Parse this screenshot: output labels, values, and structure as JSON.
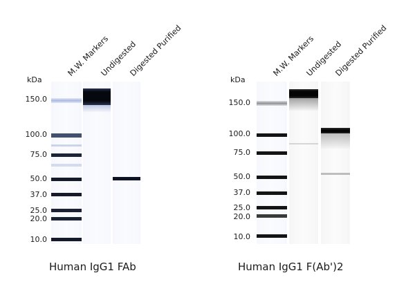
{
  "axis_unit": "kDa",
  "lane_labels": [
    "M.W. Markers",
    "Undigested",
    "Digested Purified"
  ],
  "mw_values": [
    "150.0",
    "100.0",
    "75.0",
    "50.0",
    "37.0",
    "25.0",
    "20.0",
    "10.0"
  ],
  "gels": [
    {
      "caption": "Human IgG1 FAb"
    },
    {
      "caption": "Human IgG1 F(Ab')2"
    }
  ],
  "colors": {
    "band_dark": "#0a0f1e",
    "band_blue": "#8fa3d9",
    "lane_background": "#f6f8fd"
  }
}
